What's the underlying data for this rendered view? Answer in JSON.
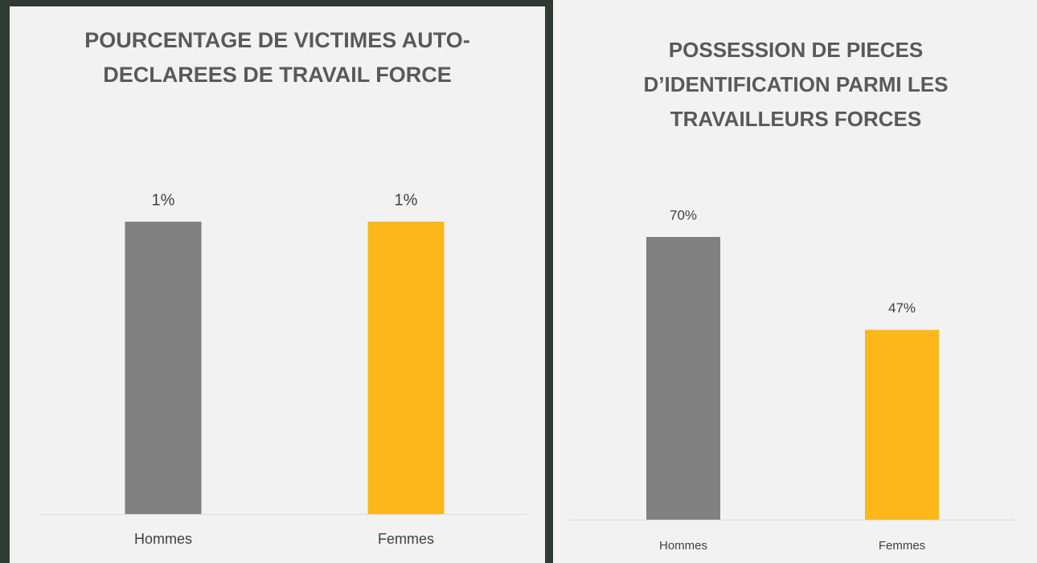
{
  "chart_data": [
    {
      "type": "bar",
      "title": "POURCENTAGE DE VICTIMES AUTO-DECLAREES DE TRAVAIL FORCE",
      "categories": [
        "Hommes",
        "Femmes"
      ],
      "values": [
        1,
        1
      ],
      "value_labels": [
        "1%",
        "1%"
      ],
      "colors": [
        "#808080",
        "#fdb71a"
      ]
    },
    {
      "type": "bar",
      "title": "POSSESSION DE PIECES D’IDENTIFICATION PARMI LES TRAVAILLEURS FORCES",
      "categories": [
        "Hommes",
        "Femmes"
      ],
      "values": [
        70,
        47
      ],
      "value_labels": [
        "70%",
        "47%"
      ],
      "colors": [
        "#808080",
        "#fdb71a"
      ]
    }
  ]
}
